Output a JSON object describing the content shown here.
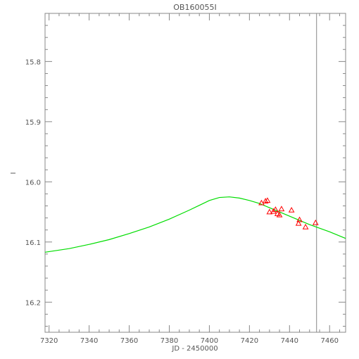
{
  "chart_data": {
    "type": "scatter",
    "title": "OB160055I",
    "xlabel": "JD - 2450000",
    "ylabel": "I",
    "xlim": [
      7318,
      7468
    ],
    "ylim": [
      16.25,
      15.72
    ],
    "y_inverted": true,
    "x_ticks": [
      7320,
      7340,
      7360,
      7380,
      7400,
      7420,
      7440,
      7460
    ],
    "y_ticks": [
      15.8,
      15.9,
      16.0,
      16.1,
      16.2
    ],
    "x_tick_labels": [
      "7320",
      "7340",
      "7360",
      "7380",
      "7400",
      "7420",
      "7440",
      "7460"
    ],
    "y_tick_labels": [
      "15.8",
      "15.9",
      "16.0",
      "16.1",
      "16.2"
    ],
    "vertical_line_x": 7453.5,
    "series": [
      {
        "type": "line",
        "color": "#00dd00",
        "x": [
          7318,
          7330,
          7340,
          7350,
          7360,
          7370,
          7380,
          7390,
          7395,
          7400,
          7405,
          7410,
          7415,
          7420,
          7425,
          7430,
          7435,
          7440,
          7445,
          7450,
          7455,
          7460,
          7468
        ],
        "y": [
          16.117,
          16.111,
          16.104,
          16.096,
          16.086,
          16.075,
          16.062,
          16.047,
          16.039,
          16.031,
          16.026,
          16.025,
          16.027,
          16.031,
          16.036,
          16.043,
          16.05,
          16.057,
          16.064,
          16.071,
          16.077,
          16.083,
          16.094
        ]
      },
      {
        "type": "scatter",
        "marker": "triangle",
        "color": "#ff0000",
        "x": [
          7426,
          7428,
          7429,
          7430,
          7432,
          7433,
          7434,
          7435,
          7436,
          7441,
          7444.5,
          7445,
          7448,
          7453
        ],
        "y": [
          16.035,
          16.032,
          16.031,
          16.05,
          16.049,
          16.046,
          16.053,
          16.055,
          16.045,
          16.047,
          16.069,
          16.063,
          16.075,
          16.068
        ]
      }
    ]
  }
}
